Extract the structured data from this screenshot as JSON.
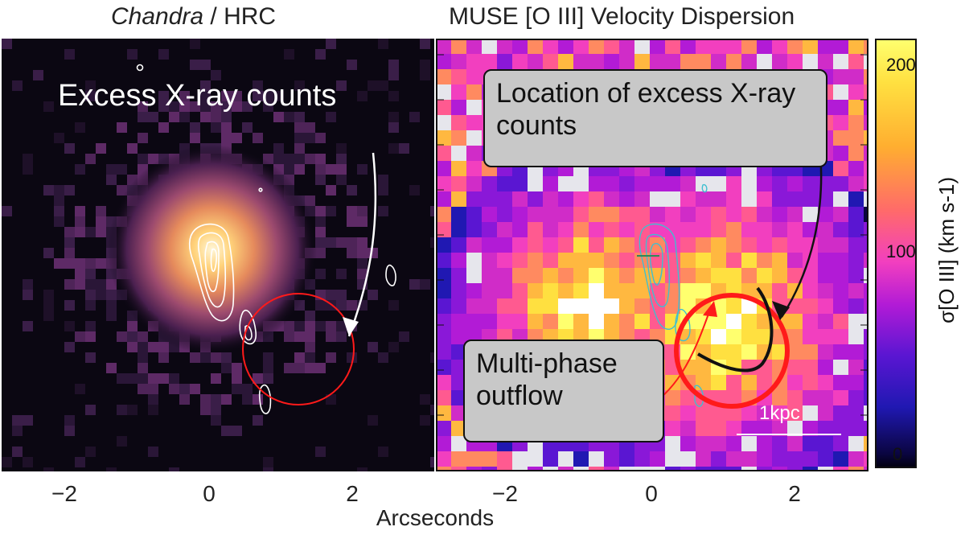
{
  "left_panel": {
    "title_italic": "Chandra",
    "title_rest": " / HRC",
    "annotation": "Excess X-ray counts"
  },
  "right_panel": {
    "title": "MUSE [O III] Velocity Dispersion",
    "annotation_location": "Location of excess X-ray counts",
    "annotation_outflow": "Multi-phase outflow",
    "scalebar_label": "1kpc"
  },
  "x_axis": {
    "label": "Arcseconds",
    "left_ticks": [
      "−2",
      "0",
      "2"
    ],
    "right_ticks": [
      "−2",
      "0",
      "2"
    ]
  },
  "colorbar": {
    "ticks": [
      "200",
      "100",
      "0"
    ],
    "label": "σ[O III] (km s-1)",
    "range": [
      0,
      220
    ]
  },
  "colors": {
    "circle": "#ff1a1a",
    "contour_left": "#ffffff",
    "contour_right": "#3fbfd0",
    "annotation_box": "#c8c8c8"
  }
}
